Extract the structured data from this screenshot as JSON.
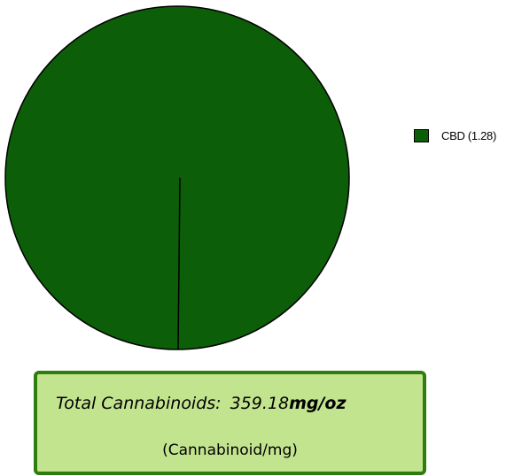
{
  "chart_data": {
    "type": "pie",
    "slices": [
      {
        "label": "CBD (1.28)",
        "value": 1.28,
        "color": "#0d5e08"
      }
    ],
    "legend_position": "right",
    "edge_color": "#000000"
  },
  "total_box": {
    "label": "Total Cannabinoids:",
    "value": "359.18",
    "unit": "mg/oz",
    "subtitle": "(Cannabinoid/mg)",
    "background": "#c3e48f",
    "border_color": "#2e7d0e"
  }
}
